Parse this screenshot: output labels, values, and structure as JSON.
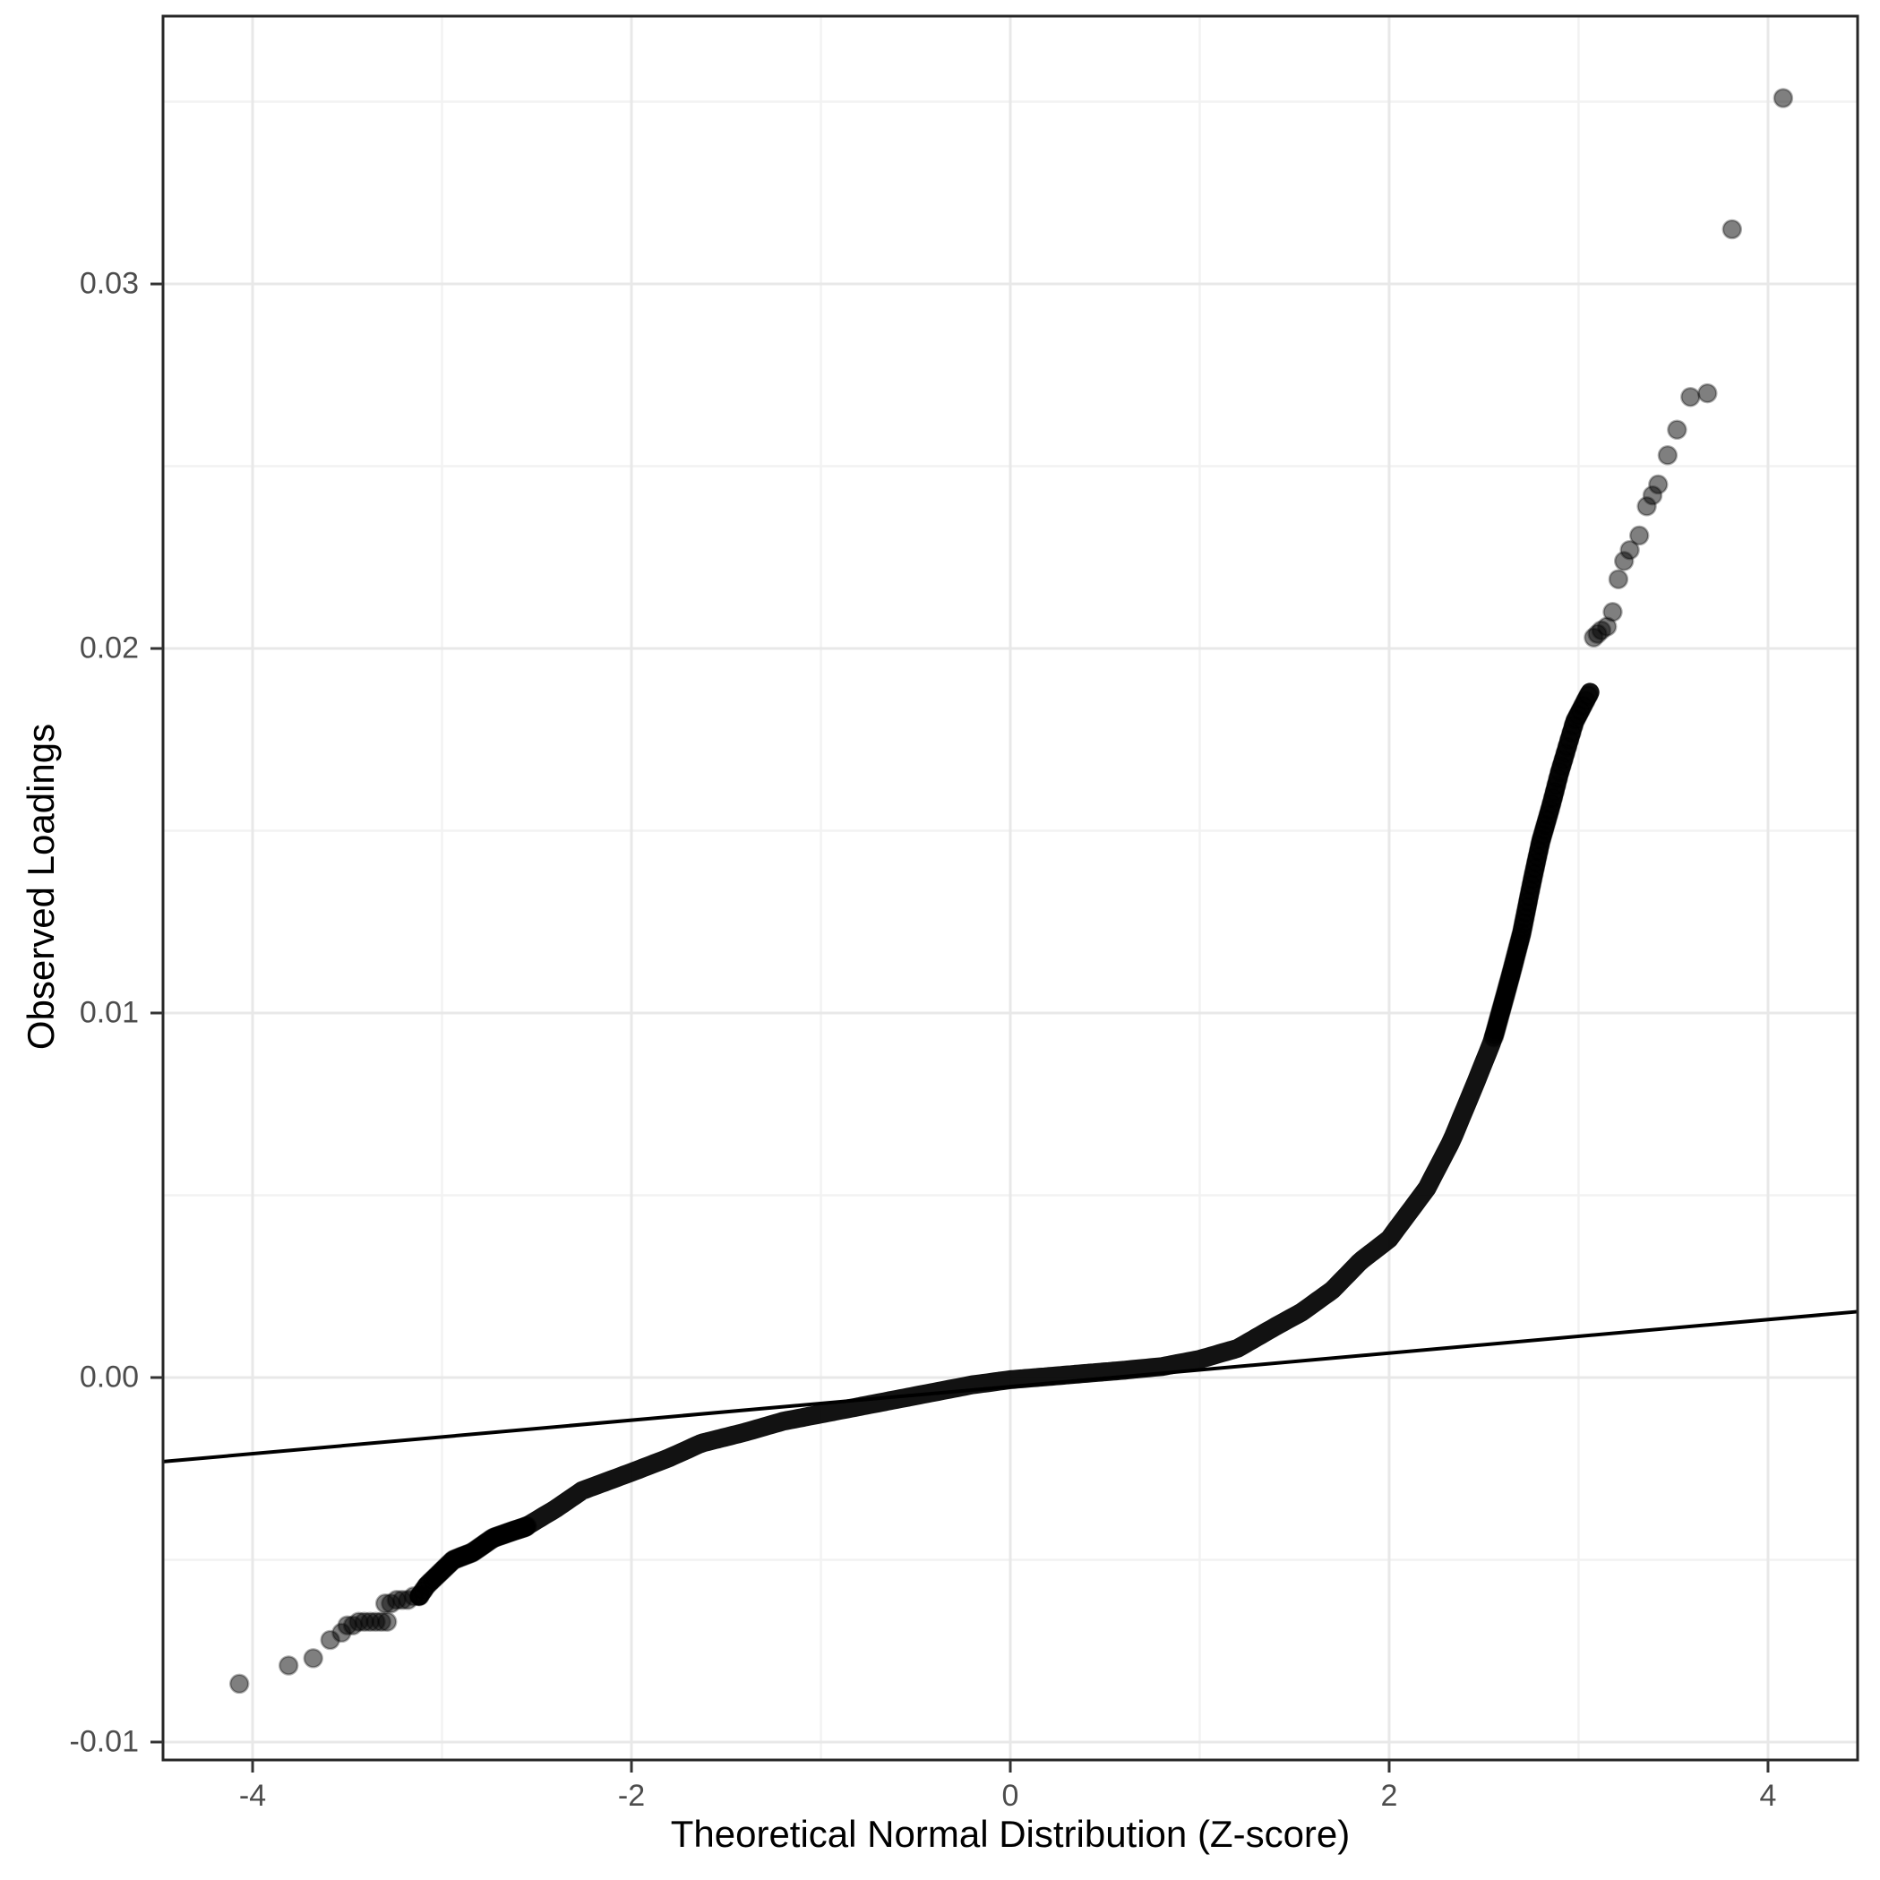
{
  "chart_data": {
    "type": "scatter",
    "title": "",
    "xlabel": "Theoretical Normal Distribution (Z-score)",
    "ylabel": "Observed Loadings",
    "x_ticks": {
      "values": [
        -4,
        -2,
        0,
        2,
        4
      ],
      "labels": [
        "-4",
        "-2",
        "0",
        "2",
        "4"
      ]
    },
    "y_ticks": {
      "values": [
        -0.01,
        0.0,
        0.01,
        0.02,
        0.03
      ],
      "labels": [
        "-0.01",
        "0.00",
        "0.01",
        "0.02",
        "0.03"
      ]
    },
    "x_minor_gridlines": [
      -3,
      -1,
      1,
      3
    ],
    "y_minor_gridlines": [
      -0.005,
      0.005,
      0.015,
      0.025,
      0.035
    ],
    "xlim": [
      -4.473,
      4.473
    ],
    "ylim": [
      -0.010492,
      0.037348
    ],
    "grid": true,
    "legend": "none",
    "reference_line": {
      "intercept": -0.00025,
      "slope": 0.00046
    },
    "dense_band_z_range": [
      -3.12,
      3.06
    ],
    "dense_band_anchors": [
      [
        -3.3,
        -0.0068
      ],
      [
        -3.27,
        -0.0067
      ],
      [
        -3.2,
        -0.0063
      ],
      [
        -3.12,
        -0.006
      ],
      [
        -3.08,
        -0.0057
      ],
      [
        -3.0,
        -0.0053
      ],
      [
        -2.94,
        -0.005
      ],
      [
        -2.84,
        -0.0048
      ],
      [
        -2.73,
        -0.0044
      ],
      [
        -2.62,
        -0.0042
      ],
      [
        -2.56,
        -0.0041
      ],
      [
        -2.4,
        -0.0036
      ],
      [
        -2.26,
        -0.0031
      ],
      [
        -2.0,
        -0.0026
      ],
      [
        -1.8,
        -0.0022
      ],
      [
        -1.63,
        -0.0018
      ],
      [
        -1.4,
        -0.0015
      ],
      [
        -1.2,
        -0.0012
      ],
      [
        -1.0,
        -0.001
      ],
      [
        -0.7,
        -0.0007
      ],
      [
        -0.4,
        -0.0004
      ],
      [
        -0.2,
        -0.0002
      ],
      [
        0.0,
        -6e-05
      ],
      [
        0.3,
        7e-05
      ],
      [
        0.6,
        0.0002
      ],
      [
        0.8,
        0.0003
      ],
      [
        1.0,
        0.0005
      ],
      [
        1.2,
        0.0008
      ],
      [
        1.4,
        0.0014
      ],
      [
        1.54,
        0.0018
      ],
      [
        1.7,
        0.0024
      ],
      [
        1.85,
        0.0032
      ],
      [
        2.0,
        0.0038
      ],
      [
        2.1,
        0.0045
      ],
      [
        2.2,
        0.0052
      ],
      [
        2.33,
        0.0065
      ],
      [
        2.45,
        0.008
      ],
      [
        2.55,
        0.0093
      ],
      [
        2.64,
        0.011
      ],
      [
        2.7,
        0.0122
      ],
      [
        2.75,
        0.0135
      ],
      [
        2.8,
        0.0147
      ],
      [
        2.85,
        0.0156
      ],
      [
        2.9,
        0.0166
      ],
      [
        2.94,
        0.0173
      ],
      [
        2.98,
        0.018
      ],
      [
        3.02,
        0.0184
      ],
      [
        3.06,
        0.0188
      ]
    ],
    "lower_tail_points": [
      [
        -4.07,
        -0.0084
      ],
      [
        -3.81,
        -0.0079
      ],
      [
        -3.68,
        -0.0077
      ],
      [
        -3.59,
        -0.0072
      ],
      [
        -3.53,
        -0.007
      ],
      [
        -3.5,
        -0.0068
      ],
      [
        -3.47,
        -0.0068
      ],
      [
        -3.44,
        -0.0067
      ],
      [
        -3.41,
        -0.0067
      ],
      [
        -3.38,
        -0.0067
      ],
      [
        -3.35,
        -0.0067
      ],
      [
        -3.32,
        -0.0067
      ],
      [
        -3.29,
        -0.0067
      ],
      [
        -3.3,
        -0.0062
      ],
      [
        -3.27,
        -0.0062
      ],
      [
        -3.24,
        -0.0061
      ],
      [
        -3.21,
        -0.0061
      ],
      [
        -3.18,
        -0.0061
      ],
      [
        -3.15,
        -0.006
      ],
      [
        -3.12,
        -0.006
      ]
    ],
    "upper_tail_points": [
      [
        3.08,
        0.0203
      ],
      [
        3.1,
        0.0204
      ],
      [
        3.12,
        0.0205
      ],
      [
        3.15,
        0.0206
      ],
      [
        3.18,
        0.021
      ],
      [
        3.21,
        0.0219
      ],
      [
        3.24,
        0.0224
      ],
      [
        3.27,
        0.0227
      ],
      [
        3.32,
        0.0231
      ],
      [
        3.36,
        0.0239
      ],
      [
        3.39,
        0.0242
      ],
      [
        3.42,
        0.0245
      ],
      [
        3.47,
        0.0253
      ],
      [
        3.52,
        0.026
      ],
      [
        3.59,
        0.0269
      ],
      [
        3.68,
        0.027
      ],
      [
        3.81,
        0.0315
      ],
      [
        4.08,
        0.0351
      ]
    ],
    "n_points_est": 18000,
    "point_style": {
      "radius": 10,
      "fill_alpha": 0.5,
      "stroke_alpha": 0.3
    }
  },
  "colors": {
    "background": "#ffffff",
    "panel_border": "#262626",
    "grid_major": "#e8e8e8",
    "grid_minor": "#f2f2f2",
    "tick_mark": "#333333",
    "tick_label": "#4d4d4d",
    "axis_title": "#000000",
    "point": "#000000",
    "reference_line": "#000000"
  }
}
